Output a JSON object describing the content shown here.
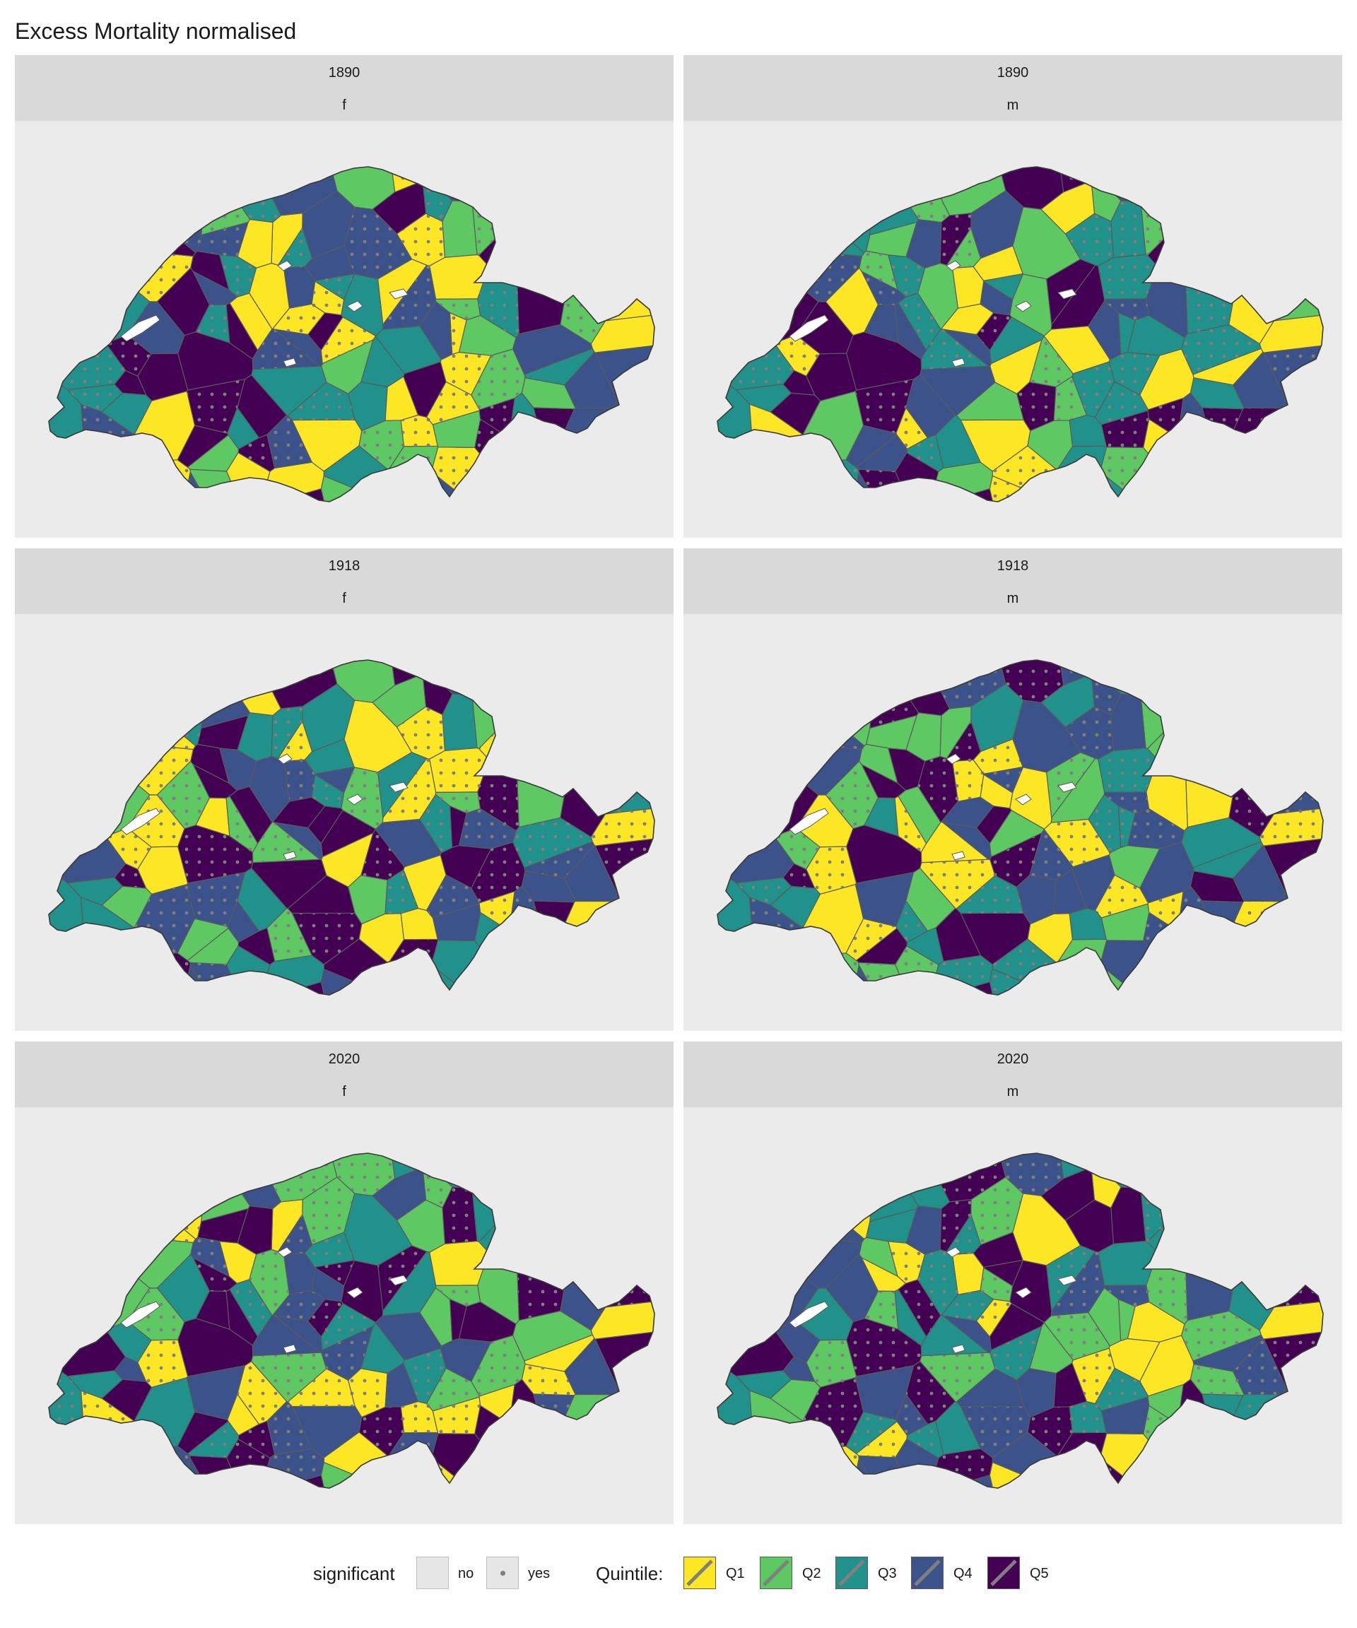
{
  "title": "Excess Mortality normalised",
  "colors": {
    "Q1": "#fde725",
    "Q2": "#5ec962",
    "Q3": "#21918c",
    "Q4": "#3b528b",
    "Q5": "#440154",
    "panel_bg": "#ebebeb",
    "strip_bg": "#d9d9d9",
    "border": "#5a5a5a",
    "dot": "#7f7f7f"
  },
  "panels": [
    {
      "year": "1890",
      "sex": "f"
    },
    {
      "year": "1890",
      "sex": "m"
    },
    {
      "year": "1918",
      "sex": "f"
    },
    {
      "year": "1918",
      "sex": "m"
    },
    {
      "year": "2020",
      "sex": "f"
    },
    {
      "year": "2020",
      "sex": "m"
    }
  ],
  "legend": {
    "significant_title": "significant",
    "significant_items": [
      {
        "label": "no",
        "pattern": "none"
      },
      {
        "label": "yes",
        "pattern": "dots"
      }
    ],
    "quintile_title": "Quintile:",
    "quintile_items": [
      {
        "label": "Q1",
        "color": "#fde725"
      },
      {
        "label": "Q2",
        "color": "#5ec962"
      },
      {
        "label": "Q3",
        "color": "#21918c"
      },
      {
        "label": "Q4",
        "color": "#3b528b"
      },
      {
        "label": "Q5",
        "color": "#440154"
      }
    ]
  }
}
